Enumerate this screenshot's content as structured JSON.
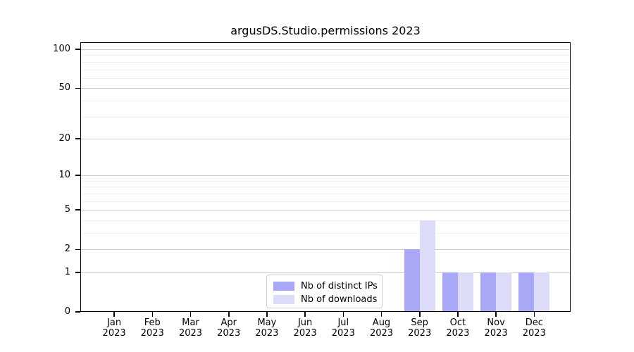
{
  "chart_data": {
    "type": "bar",
    "title": "argusDS.Studio.permissions 2023",
    "categories": [
      "Jan 2023",
      "Feb 2023",
      "Mar 2023",
      "Apr 2023",
      "May 2023",
      "Jun 2023",
      "Jul 2023",
      "Aug 2023",
      "Sep 2023",
      "Oct 2023",
      "Nov 2023",
      "Dec 2023"
    ],
    "x_months": [
      "Jan",
      "Feb",
      "Mar",
      "Apr",
      "May",
      "Jun",
      "Jul",
      "Aug",
      "Sep",
      "Oct",
      "Nov",
      "Dec"
    ],
    "x_year": "2023",
    "series": [
      {
        "name": "Nb of distinct IPs",
        "color": "#a8a8f7",
        "values": [
          0,
          0,
          0,
          0,
          0,
          0,
          0,
          0,
          2,
          1,
          1,
          1
        ]
      },
      {
        "name": "Nb of downloads",
        "color": "#dcdcf8",
        "values": [
          0,
          0,
          0,
          0,
          0,
          0,
          0,
          0,
          4,
          1,
          1,
          1
        ]
      }
    ],
    "yscale": "log1p",
    "ylim": [
      0,
      113
    ],
    "y_major_ticks": [
      0,
      1,
      2,
      5,
      10,
      20,
      50,
      100
    ],
    "y_minor_ticks": [
      3,
      4,
      6,
      7,
      8,
      9,
      30,
      40,
      60,
      70,
      80,
      90
    ],
    "grid": "both",
    "legend_position": "lower center inside",
    "xlabel": "",
    "ylabel": ""
  }
}
